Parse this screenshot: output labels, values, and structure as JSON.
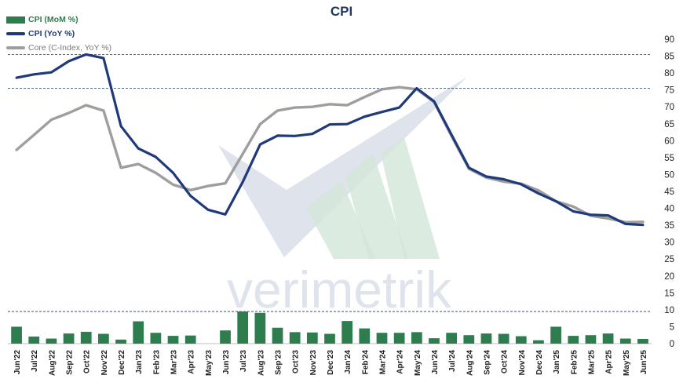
{
  "chart_data": {
    "type": "bar+line",
    "title": "CPI",
    "watermark": "verimetrik",
    "categories": [
      "Jun'22",
      "Jul'22",
      "Aug'22",
      "Sep'22",
      "Oct'22",
      "Nov'22",
      "Dec'22",
      "Jan'23",
      "Feb'23",
      "Mar'23",
      "Apr'23",
      "May'23",
      "Jun'23",
      "Jul'23",
      "Aug'23",
      "Sep'23",
      "Oct'23",
      "Nov'23",
      "Dec'23",
      "Jan'24",
      "Feb'24",
      "Mar'24",
      "Apr'24",
      "May'24",
      "Jun'24",
      "Jul'24",
      "Aug'24",
      "Sep'24",
      "Oct'24",
      "Nov'24",
      "Dec'24",
      "Jan'25",
      "Feb'25",
      "Mar'25",
      "Apr'25",
      "May'25",
      "Jun'25"
    ],
    "ylim": [
      0,
      90
    ],
    "yticks": [
      0,
      5,
      10,
      15,
      20,
      25,
      30,
      35,
      40,
      45,
      50,
      55,
      60,
      65,
      70,
      75,
      80,
      85,
      90
    ],
    "reference_lines": [
      85.5,
      75.5,
      9.5
    ],
    "series": [
      {
        "name": "CPI (MoM %)",
        "type": "bar",
        "color": "#2e7d4f",
        "values": [
          5.0,
          2.1,
          1.5,
          3.0,
          3.5,
          2.9,
          1.2,
          6.6,
          3.2,
          2.3,
          2.4,
          0.0,
          3.9,
          9.5,
          9.1,
          4.7,
          3.4,
          3.3,
          2.9,
          6.7,
          4.5,
          3.2,
          3.2,
          3.4,
          1.6,
          3.2,
          2.5,
          3.0,
          2.9,
          2.2,
          1.0,
          5.0,
          2.3,
          2.5,
          3.0,
          1.5,
          1.4
        ]
      },
      {
        "name": "CPI (YoY %)",
        "type": "line",
        "color": "#1f3a7a",
        "values": [
          78.6,
          79.6,
          80.2,
          83.5,
          85.5,
          84.4,
          64.3,
          57.7,
          55.2,
          50.5,
          43.7,
          39.6,
          38.2,
          47.8,
          58.9,
          61.5,
          61.4,
          62.0,
          64.8,
          64.9,
          67.1,
          68.5,
          69.8,
          75.5,
          71.6,
          61.8,
          52.0,
          49.4,
          48.6,
          47.1,
          44.4,
          42.1,
          39.1,
          38.1,
          37.9,
          35.4,
          35.1
        ]
      },
      {
        "name": "Core (C-Index, YoY %)",
        "type": "line",
        "color": "#9e9e9e",
        "values": [
          57.3,
          61.7,
          66.2,
          68.2,
          70.5,
          68.9,
          52.0,
          53.1,
          50.5,
          47.0,
          45.4,
          46.6,
          47.4,
          56.1,
          64.9,
          68.9,
          69.8,
          70.0,
          70.8,
          70.5,
          72.9,
          75.2,
          75.8,
          75.2,
          71.4,
          61.4,
          51.7,
          49.1,
          47.9,
          47.3,
          45.3,
          42.1,
          40.5,
          37.8,
          37.0,
          35.9,
          36.0
        ]
      }
    ]
  }
}
